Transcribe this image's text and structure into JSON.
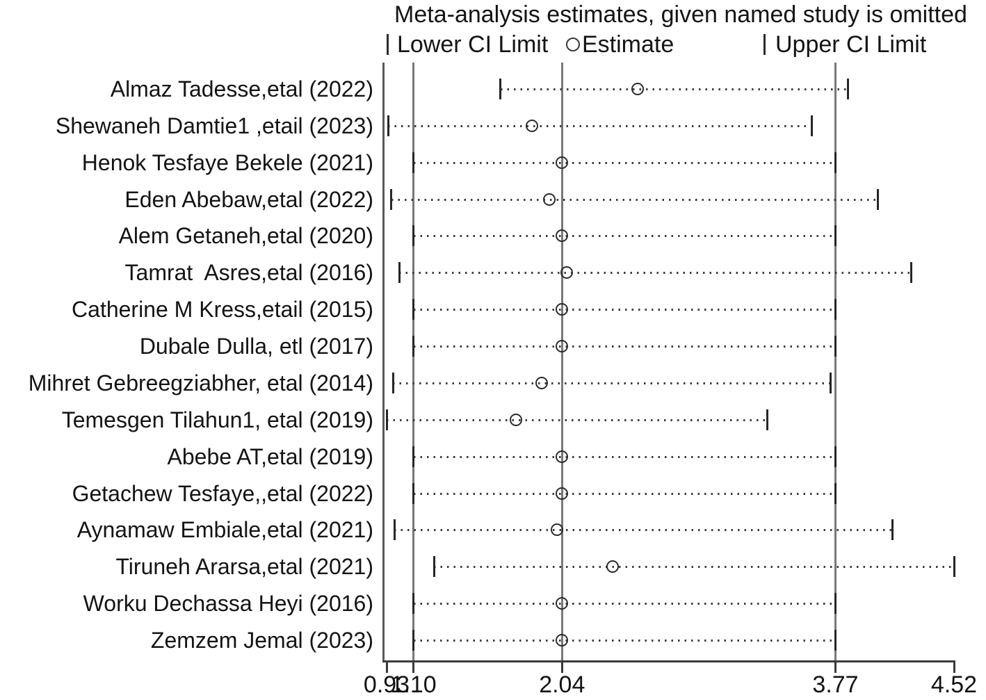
{
  "title": "Meta-analysis estimates, given named study is omitted",
  "legend": {
    "lower": "Lower CI Limit",
    "estimate": "Estimate",
    "upper": "Upper CI Limit"
  },
  "colors": {
    "text": "#141414",
    "reference_line": "#787878",
    "axis": "#3a3a3a",
    "marker": "#2b2b2b"
  },
  "chart_data": {
    "type": "scatter",
    "subtype": "leave-one-out-sensitivity-forest",
    "title": "Meta-analysis estimates, given named study is omitted",
    "xlabel": "",
    "ylabel": "",
    "x_axis": {
      "range": [
        0.93,
        4.52
      ],
      "ticks": [
        0.93,
        1.1,
        2.04,
        3.77,
        4.52
      ],
      "tick_labels": [
        "0.93",
        "1.10",
        "2.04",
        "3.77",
        "4.52"
      ]
    },
    "reference_lines": {
      "pooled_lower_ci": 1.1,
      "pooled_estimate": 2.04,
      "pooled_upper_ci": 3.77
    },
    "legend_entries": [
      "Lower CI Limit",
      "Estimate",
      "Upper CI Limit"
    ],
    "grid": false,
    "rows": [
      {
        "study": "Almaz Tadesse,etal (2022)",
        "lower": 1.65,
        "estimate": 2.52,
        "upper": 3.85
      },
      {
        "study": "Shewaneh Damtie1 ,etail (2023)",
        "lower": 0.94,
        "estimate": 1.85,
        "upper": 3.62
      },
      {
        "study": "Henok Tesfaye Bekele (2021)",
        "lower": 1.1,
        "estimate": 2.04,
        "upper": 3.77
      },
      {
        "study": "Eden Abebaw,etal (2022)",
        "lower": 0.96,
        "estimate": 1.96,
        "upper": 4.04
      },
      {
        "study": "Alem Getaneh,etal (2020)",
        "lower": 1.1,
        "estimate": 2.04,
        "upper": 3.77
      },
      {
        "study": "Tamrat  Asres,etal (2016)",
        "lower": 1.01,
        "estimate": 2.07,
        "upper": 4.25
      },
      {
        "study": "Catherine M Kress,etail (2015)",
        "lower": 1.1,
        "estimate": 2.04,
        "upper": 3.77
      },
      {
        "study": "Dubale Dulla, etl (2017)",
        "lower": 1.1,
        "estimate": 2.04,
        "upper": 3.77
      },
      {
        "study": "Mihret Gebreegziabher, etal (2014)",
        "lower": 0.97,
        "estimate": 1.91,
        "upper": 3.74
      },
      {
        "study": "Temesgen Tilahun1, etal (2019)",
        "lower": 0.93,
        "estimate": 1.75,
        "upper": 3.34
      },
      {
        "study": "Abebe AT,etal (2019)",
        "lower": 1.1,
        "estimate": 2.04,
        "upper": 3.77
      },
      {
        "study": "Getachew Tesfaye,,etal (2022)",
        "lower": 1.1,
        "estimate": 2.04,
        "upper": 3.77
      },
      {
        "study": "Aynamaw Embiale,etal (2021)",
        "lower": 0.98,
        "estimate": 2.01,
        "upper": 4.13
      },
      {
        "study": "Tiruneh Ararsa,etal (2021)",
        "lower": 1.23,
        "estimate": 2.36,
        "upper": 4.52
      },
      {
        "study": "Worku Dechassa Heyi (2016)",
        "lower": 1.1,
        "estimate": 2.04,
        "upper": 3.77
      },
      {
        "study": "Zemzem Jemal (2023)",
        "lower": 1.1,
        "estimate": 2.04,
        "upper": 3.77
      }
    ]
  }
}
